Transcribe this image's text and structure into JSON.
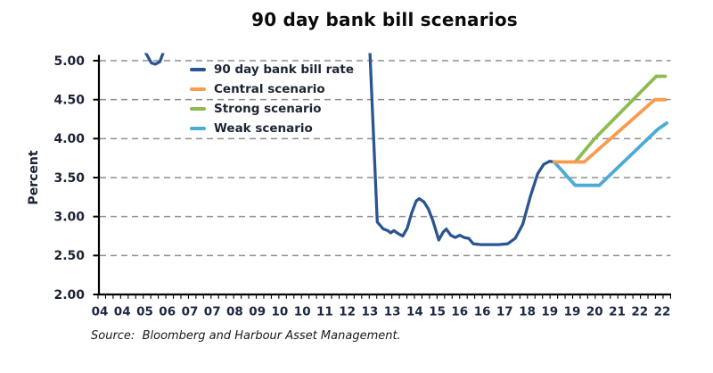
{
  "title": "90 day bank bill scenarios",
  "source": "Source:  Bloomberg and Harbour Asset Management.",
  "chart_data": {
    "type": "line",
    "title": "90 day bank bill scenarios",
    "xlabel": "",
    "ylabel": "Percent",
    "ylim": [
      2.0,
      5.0
    ],
    "ytick_step": 0.5,
    "y_tick_labels": [
      "5.00",
      "4.50",
      "4.00",
      "3.50",
      "3.00",
      "2.50",
      "2.00"
    ],
    "x_tick_labels": [
      "04",
      "04",
      "05",
      "06",
      "07",
      "07",
      "08",
      "09",
      "10",
      "10",
      "11",
      "12",
      "13",
      "13",
      "14",
      "15",
      "16",
      "16",
      "17",
      "18",
      "19",
      "19",
      "20",
      "21",
      "22",
      "22"
    ],
    "grid": "horizontal-dashed",
    "gridline_color": "#8f8f8f",
    "axis_color": "#000000",
    "legend_position": "inside-top-left",
    "values_above_axis_max_are_clipped": true,
    "series": [
      {
        "name": "90 day bank bill rate",
        "color": "#2B5591",
        "segments": [
          [
            [
              2005.5,
              5.12
            ],
            [
              2005.72,
              4.97
            ],
            [
              2005.85,
              4.955
            ],
            [
              2006.0,
              4.985
            ],
            [
              2006.13,
              5.12
            ]
          ],
          [
            [
              2012.95,
              5.6
            ],
            [
              2013.25,
              2.93
            ],
            [
              2013.45,
              2.84
            ],
            [
              2013.6,
              2.82
            ],
            [
              2013.7,
              2.79
            ],
            [
              2013.8,
              2.82
            ],
            [
              2013.95,
              2.78
            ],
            [
              2014.1,
              2.75
            ],
            [
              2014.25,
              2.85
            ],
            [
              2014.4,
              3.05
            ],
            [
              2014.55,
              3.2
            ],
            [
              2014.65,
              3.23
            ],
            [
              2014.8,
              3.19
            ],
            [
              2014.95,
              3.1
            ],
            [
              2015.1,
              2.95
            ],
            [
              2015.3,
              2.7
            ],
            [
              2015.45,
              2.8
            ],
            [
              2015.55,
              2.84
            ],
            [
              2015.7,
              2.76
            ],
            [
              2015.85,
              2.73
            ],
            [
              2016.0,
              2.76
            ],
            [
              2016.15,
              2.73
            ],
            [
              2016.3,
              2.72
            ],
            [
              2016.45,
              2.65
            ],
            [
              2016.7,
              2.64
            ],
            [
              2017.3,
              2.64
            ],
            [
              2017.6,
              2.65
            ],
            [
              2017.85,
              2.72
            ],
            [
              2018.1,
              2.9
            ],
            [
              2018.35,
              3.25
            ],
            [
              2018.6,
              3.55
            ],
            [
              2018.8,
              3.67
            ],
            [
              2019.0,
              3.71
            ],
            [
              2019.15,
              3.7
            ]
          ]
        ]
      },
      {
        "name": "Central scenario",
        "color": "#F79B4E",
        "segments": [
          [
            [
              2019.15,
              3.7
            ],
            [
              2020.15,
              3.7
            ],
            [
              2022.5,
              4.5
            ],
            [
              2022.85,
              4.5
            ]
          ]
        ]
      },
      {
        "name": "Strong scenario",
        "color": "#8CBC4F",
        "segments": [
          [
            [
              2019.85,
              3.7
            ],
            [
              2020.5,
              4.0
            ],
            [
              2022.55,
              4.8
            ],
            [
              2022.85,
              4.8
            ]
          ]
        ]
      },
      {
        "name": "Weak scenario",
        "color": "#4AACD6",
        "segments": [
          [
            [
              2019.15,
              3.7
            ],
            [
              2019.85,
              3.4
            ],
            [
              2020.65,
              3.4
            ],
            [
              2022.6,
              4.12
            ],
            [
              2022.9,
              4.2
            ]
          ]
        ]
      }
    ]
  }
}
